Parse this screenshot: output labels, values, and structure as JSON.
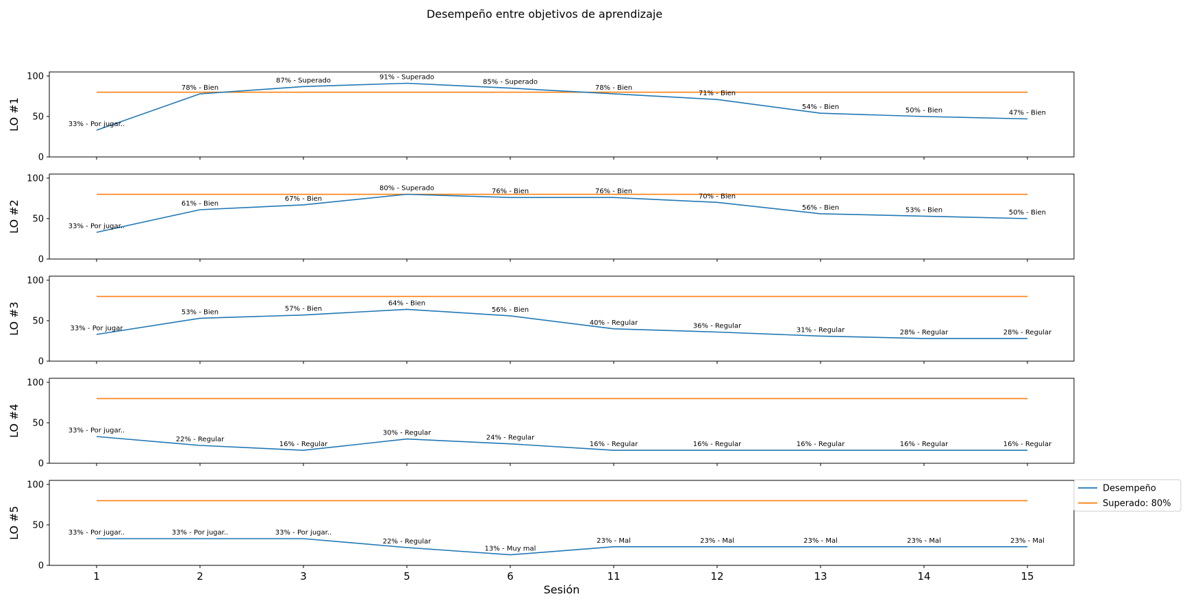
{
  "chart_data": {
    "type": "line",
    "title": "Desempeño entre objetivos de aprendizaje",
    "xlabel": "Sesión",
    "categories": [
      "1",
      "2",
      "3",
      "5",
      "6",
      "11",
      "12",
      "13",
      "14",
      "15"
    ],
    "ylim": [
      0,
      100
    ],
    "yticks": [
      0,
      50,
      100
    ],
    "legend": {
      "position": "right",
      "entries": [
        {
          "name": "Desempeño",
          "color": "#1f77b4"
        },
        {
          "name": "Superado: 80%",
          "color": "#ff7f0e"
        }
      ]
    },
    "threshold": 80,
    "colors": {
      "performance": "#1f77b4",
      "threshold": "#ff7f0e"
    },
    "panels": [
      {
        "ylabel": "LO #1",
        "values": [
          33,
          78,
          87,
          91,
          85,
          78,
          71,
          54,
          50,
          47
        ],
        "labels": [
          "33% - Por jugar..",
          "78% - Bien",
          "87% - Superado",
          "91% - Superado",
          "85% - Superado",
          "78% - Bien",
          "71% - Bien",
          "54% - Bien",
          "50% - Bien",
          "47% - Bien"
        ]
      },
      {
        "ylabel": "LO #2",
        "values": [
          33,
          61,
          67,
          80,
          76,
          76,
          70,
          56,
          53,
          50
        ],
        "labels": [
          "33% - Por jugar..",
          "61% - Bien",
          "67% - Bien",
          "80% - Superado",
          "76% - Bien",
          "76% - Bien",
          "70% - Bien",
          "56% - Bien",
          "53% - Bien",
          "50% - Bien"
        ]
      },
      {
        "ylabel": "LO #3",
        "values": [
          33,
          53,
          57,
          64,
          56,
          40,
          36,
          31,
          28,
          28
        ],
        "labels": [
          "33% - Por jugar",
          "53% - Bien",
          "57% - Bien",
          "64% - Bien",
          "56% - Bien",
          "40% - Regular",
          "36% - Regular",
          "31% - Regular",
          "28% - Regular",
          "28% - Regular"
        ]
      },
      {
        "ylabel": "LO #4",
        "values": [
          33,
          22,
          16,
          30,
          24,
          16,
          16,
          16,
          16,
          16
        ],
        "labels": [
          "33% - Por jugar..",
          "22% - Regular",
          "16% - Regular",
          "30% - Regular",
          "24% - Regular",
          "16% - Regular",
          "16% - Regular",
          "16% - Regular",
          "16% - Regular",
          "16% - Regular"
        ]
      },
      {
        "ylabel": "LO #5",
        "values": [
          33,
          33,
          33,
          22,
          13,
          23,
          23,
          23,
          23,
          23
        ],
        "labels": [
          "33% - Por jugar..",
          "33% - Por jugar..",
          "33% - Por jugar..",
          "22% - Regular",
          "13% - Muy mal",
          "23% - Mal",
          "23% - Mal",
          "23% - Mal",
          "23% - Mal",
          "23% - Mal"
        ]
      }
    ]
  }
}
